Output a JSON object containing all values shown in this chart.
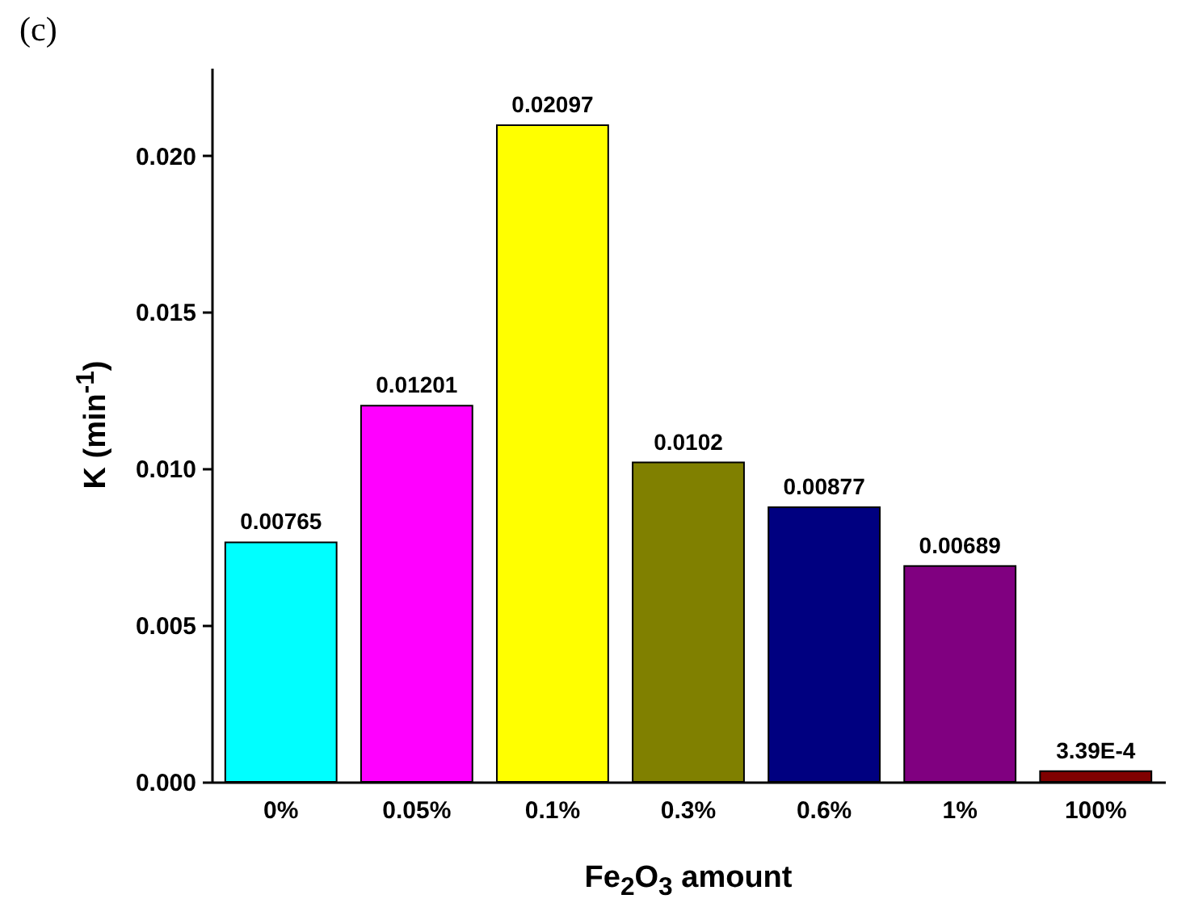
{
  "chart_data": {
    "type": "bar",
    "xlabel": "Fe$_{2}$O$_{3}$ amount",
    "ylabel": "K (min$^{-1}$)",
    "annotations": [
      "(c)"
    ],
    "categories": [
      "0%",
      "0.05%",
      "0.1%",
      "0.3%",
      "0.6%",
      "1%",
      "100%"
    ],
    "values": [
      0.00765,
      0.01201,
      0.02097,
      0.0102,
      0.00877,
      0.00689,
      0.000339
    ],
    "value_labels": [
      "0.00765",
      "0.01201",
      "0.02097",
      "0.0102",
      "0.00877",
      "0.00689",
      "3.39E-4"
    ],
    "colors": [
      "#00ffff",
      "#ff00ff",
      "#ffff00",
      "#808000",
      "#000080",
      "#800080",
      "#800000"
    ],
    "ylim": [
      0,
      0.0228
    ],
    "yticks": [
      {
        "value": 0,
        "label": "0.000"
      },
      {
        "value": 0.005,
        "label": "0.005"
      },
      {
        "value": 0.01,
        "label": "0.010"
      },
      {
        "value": 0.015,
        "label": "0.015"
      },
      {
        "value": 0.02,
        "label": "0.020"
      }
    ]
  }
}
